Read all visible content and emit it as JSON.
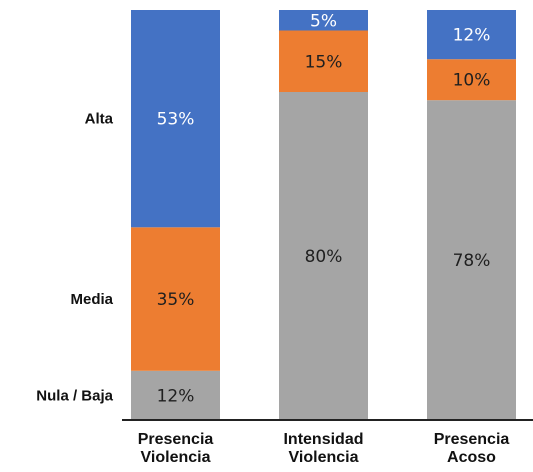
{
  "chart_data": {
    "type": "bar",
    "stacked": true,
    "percent": true,
    "categories": [
      [
        "Presencia",
        "Violencia"
      ],
      [
        "Intensidad",
        "Violencia"
      ],
      [
        "Presencia",
        "Acoso"
      ]
    ],
    "series": [
      {
        "name": "Nula / Baja",
        "values": [
          12,
          80,
          78
        ],
        "color": "#a5a5a5"
      },
      {
        "name": "Media",
        "values": [
          35,
          15,
          10
        ],
        "color": "#ed7d31"
      },
      {
        "name": "Alta",
        "values": [
          53,
          5,
          12
        ],
        "color": "#4472c4"
      }
    ],
    "ylim": [
      0,
      100
    ],
    "grid": false,
    "legend": "left, row labels beside first bar"
  }
}
